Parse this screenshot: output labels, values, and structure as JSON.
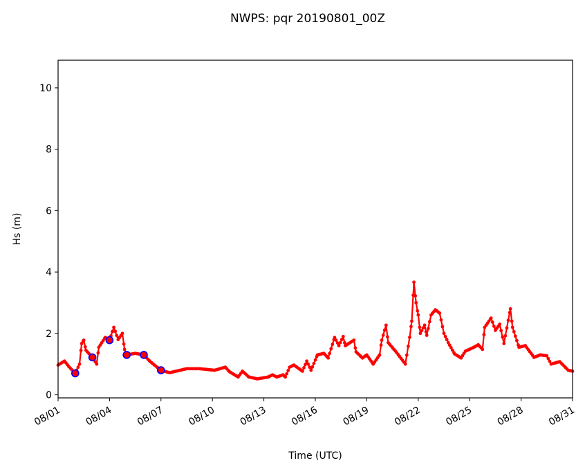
{
  "chart_data": {
    "type": "line",
    "title": "NWPS: pqr 20190801_00Z",
    "xlabel": "Time (UTC)",
    "ylabel": "Hs (m)",
    "xlim": [
      "08/01 00",
      "08/31 00"
    ],
    "ylim": [
      -0.1,
      10.9
    ],
    "x_ticks": [
      "08/01",
      "08/04",
      "08/07",
      "08/10",
      "08/13",
      "08/16",
      "08/19",
      "08/22",
      "08/25",
      "08/28",
      "08/31"
    ],
    "y_ticks": [
      0,
      2,
      4,
      6,
      8,
      10
    ],
    "grid": false,
    "colors": {
      "model": "#ff0000",
      "obs_edge": "#0000ff",
      "obs_fill": "#ff0000"
    },
    "series": [
      {
        "style": "red line with dot markers",
        "points": [
          [
            "08/01 00",
            0.97
          ],
          [
            "08/01 09",
            1.1
          ],
          [
            "08/01 15",
            0.92
          ],
          [
            "08/02 00",
            0.7
          ],
          [
            "08/02 06",
            1.0
          ],
          [
            "08/02 09",
            1.67
          ],
          [
            "08/02 12",
            1.78
          ],
          [
            "08/02 15",
            1.45
          ],
          [
            "08/03 00",
            1.22
          ],
          [
            "08/03 06",
            1.0
          ],
          [
            "08/03 09",
            1.55
          ],
          [
            "08/03 18",
            1.87
          ],
          [
            "08/04 00",
            1.78
          ],
          [
            "08/04 06",
            2.2
          ],
          [
            "08/04 12",
            1.8
          ],
          [
            "08/04 18",
            2.0
          ],
          [
            "08/04 21",
            1.48
          ],
          [
            "08/05 00",
            1.3
          ],
          [
            "08/05 12",
            1.35
          ],
          [
            "08/06 00",
            1.3
          ],
          [
            "08/06 09",
            1.08
          ],
          [
            "08/07 00",
            0.8
          ],
          [
            "08/07 12",
            0.72
          ],
          [
            "08/08 12",
            0.85
          ],
          [
            "08/09 06",
            0.85
          ],
          [
            "08/10 03",
            0.8
          ],
          [
            "08/10 18",
            0.9
          ],
          [
            "08/11 00",
            0.75
          ],
          [
            "08/11 12",
            0.58
          ],
          [
            "08/11 18",
            0.77
          ],
          [
            "08/12 03",
            0.58
          ],
          [
            "08/12 15",
            0.52
          ],
          [
            "08/13 06",
            0.58
          ],
          [
            "08/13 12",
            0.65
          ],
          [
            "08/13 18",
            0.58
          ],
          [
            "08/14 03",
            0.65
          ],
          [
            "08/14 06",
            0.58
          ],
          [
            "08/14 12",
            0.9
          ],
          [
            "08/14 18",
            0.97
          ],
          [
            "08/15 06",
            0.77
          ],
          [
            "08/15 12",
            1.1
          ],
          [
            "08/15 18",
            0.8
          ],
          [
            "08/16 03",
            1.3
          ],
          [
            "08/16 12",
            1.35
          ],
          [
            "08/16 18",
            1.2
          ],
          [
            "08/17 03",
            1.87
          ],
          [
            "08/17 09",
            1.6
          ],
          [
            "08/17 15",
            1.9
          ],
          [
            "08/17 18",
            1.6
          ],
          [
            "08/18 06",
            1.78
          ],
          [
            "08/18 09",
            1.4
          ],
          [
            "08/18 18",
            1.2
          ],
          [
            "08/19 00",
            1.3
          ],
          [
            "08/19 09",
            1.0
          ],
          [
            "08/19 18",
            1.3
          ],
          [
            "08/19 21",
            1.78
          ],
          [
            "08/20 03",
            2.27
          ],
          [
            "08/20 06",
            1.7
          ],
          [
            "08/20 18",
            1.37
          ],
          [
            "08/21 06",
            1.0
          ],
          [
            "08/21 12",
            1.87
          ],
          [
            "08/21 15",
            2.4
          ],
          [
            "08/21 18",
            3.67
          ],
          [
            "08/21 21",
            3.0
          ],
          [
            "08/22 00",
            2.6
          ],
          [
            "08/22 03",
            2.0
          ],
          [
            "08/22 09",
            2.27
          ],
          [
            "08/22 12",
            1.94
          ],
          [
            "08/22 18",
            2.6
          ],
          [
            "08/23 00",
            2.77
          ],
          [
            "08/23 06",
            2.66
          ],
          [
            "08/23 12",
            2.0
          ],
          [
            "08/23 18",
            1.7
          ],
          [
            "08/24 03",
            1.33
          ],
          [
            "08/24 12",
            1.2
          ],
          [
            "08/24 18",
            1.42
          ],
          [
            "08/25 06",
            1.55
          ],
          [
            "08/25 12",
            1.63
          ],
          [
            "08/25 18",
            1.48
          ],
          [
            "08/25 21",
            2.2
          ],
          [
            "08/26 06",
            2.5
          ],
          [
            "08/26 12",
            2.1
          ],
          [
            "08/26 18",
            2.3
          ],
          [
            "08/27 00",
            1.67
          ],
          [
            "08/27 06",
            2.43
          ],
          [
            "08/27 09",
            2.8
          ],
          [
            "08/27 12",
            2.2
          ],
          [
            "08/27 21",
            1.55
          ],
          [
            "08/28 06",
            1.6
          ],
          [
            "08/28 18",
            1.22
          ],
          [
            "08/29 03",
            1.3
          ],
          [
            "08/29 12",
            1.27
          ],
          [
            "08/29 18",
            1.0
          ],
          [
            "08/30 06",
            1.08
          ],
          [
            "08/30 18",
            0.8
          ],
          [
            "08/31 00",
            0.77
          ]
        ]
      },
      {
        "style": "blue-edged circle markers",
        "points": [
          [
            "08/02 00",
            0.7
          ],
          [
            "08/03 00",
            1.22
          ],
          [
            "08/04 00",
            1.78
          ],
          [
            "08/05 00",
            1.3
          ],
          [
            "08/06 00",
            1.3
          ],
          [
            "08/07 00",
            0.8
          ]
        ]
      }
    ]
  }
}
